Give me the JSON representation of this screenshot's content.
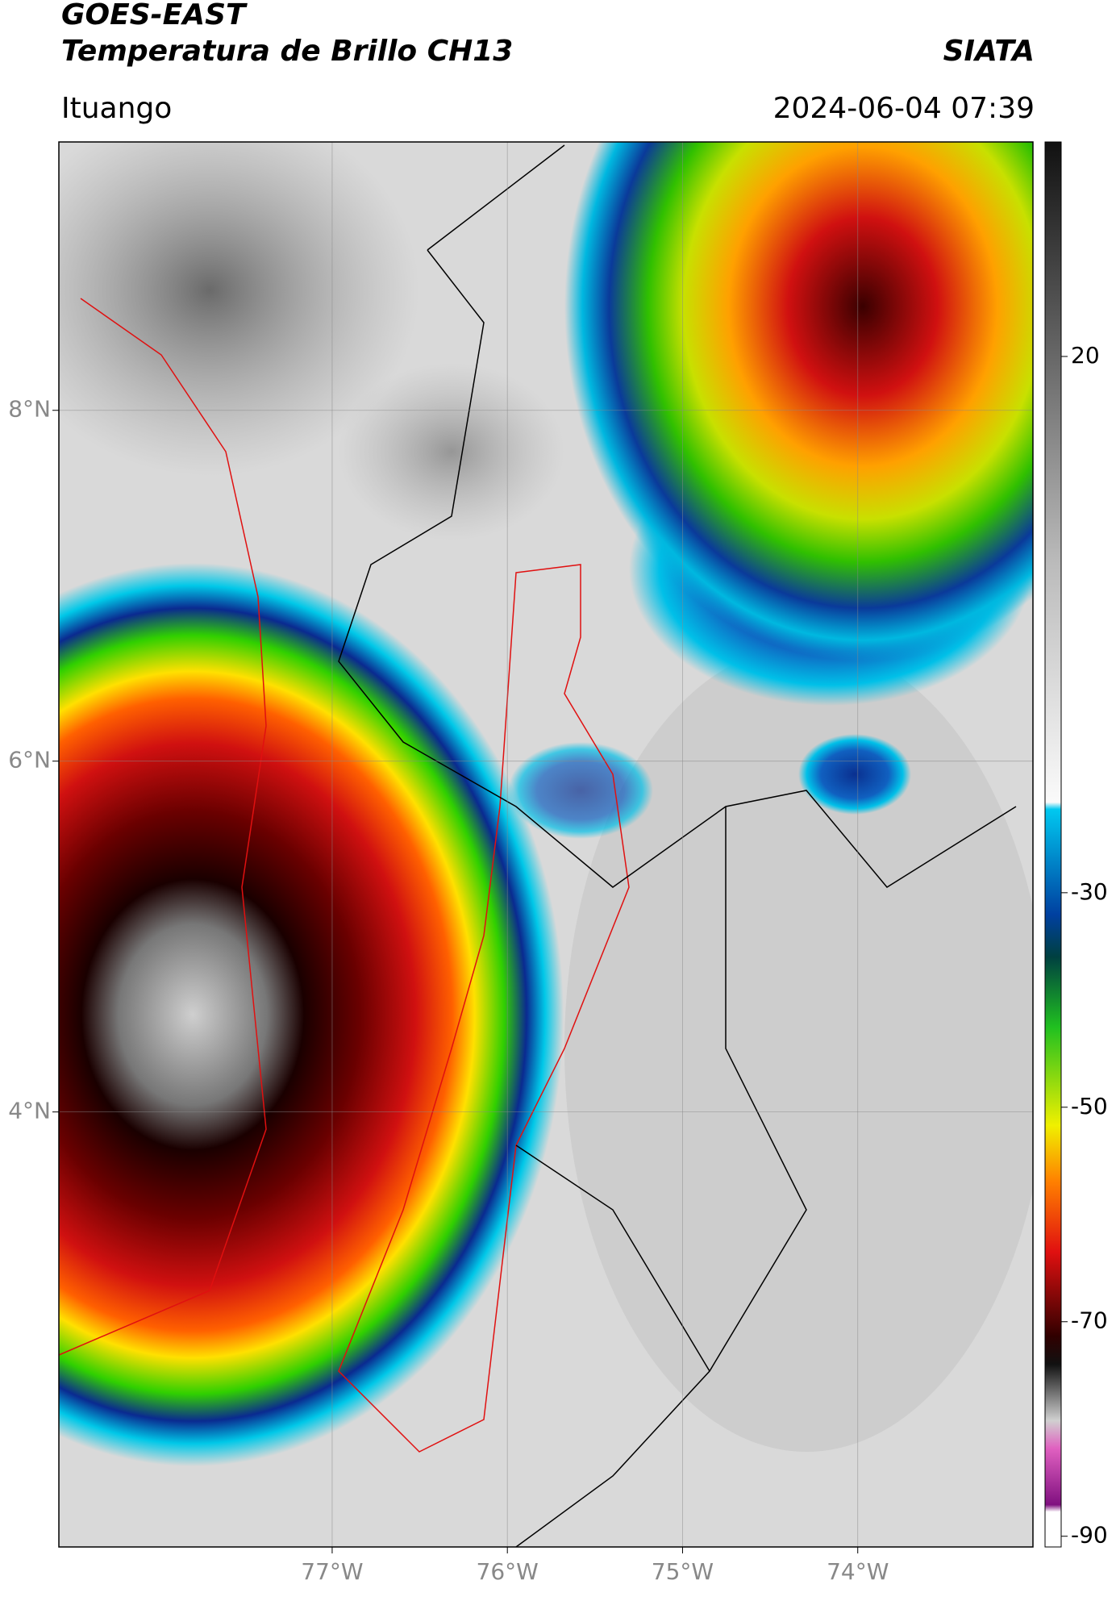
{
  "header": {
    "title": "GOES-EAST",
    "subtitle": "Temperatura de Brillo CH13",
    "org": "SIATA",
    "location": "Ituango",
    "datetime": "2024-06-04 07:39"
  },
  "map": {
    "xlim": [
      -78.56,
      -73.0
    ],
    "ylim": [
      1.52,
      9.53
    ],
    "xticks": [
      {
        "value": -77,
        "label": "77°W"
      },
      {
        "value": -76,
        "label": "76°W"
      },
      {
        "value": -75,
        "label": "75°W"
      },
      {
        "value": -74,
        "label": "74°W"
      }
    ],
    "yticks": [
      {
        "value": 8,
        "label": "8°N"
      },
      {
        "value": 6,
        "label": "6°N"
      },
      {
        "value": 4,
        "label": "4°N"
      }
    ]
  },
  "colorbar": {
    "lim": [
      -91,
      40
    ],
    "ticks": [
      20,
      -30,
      -50,
      -70,
      -90
    ]
  }
}
